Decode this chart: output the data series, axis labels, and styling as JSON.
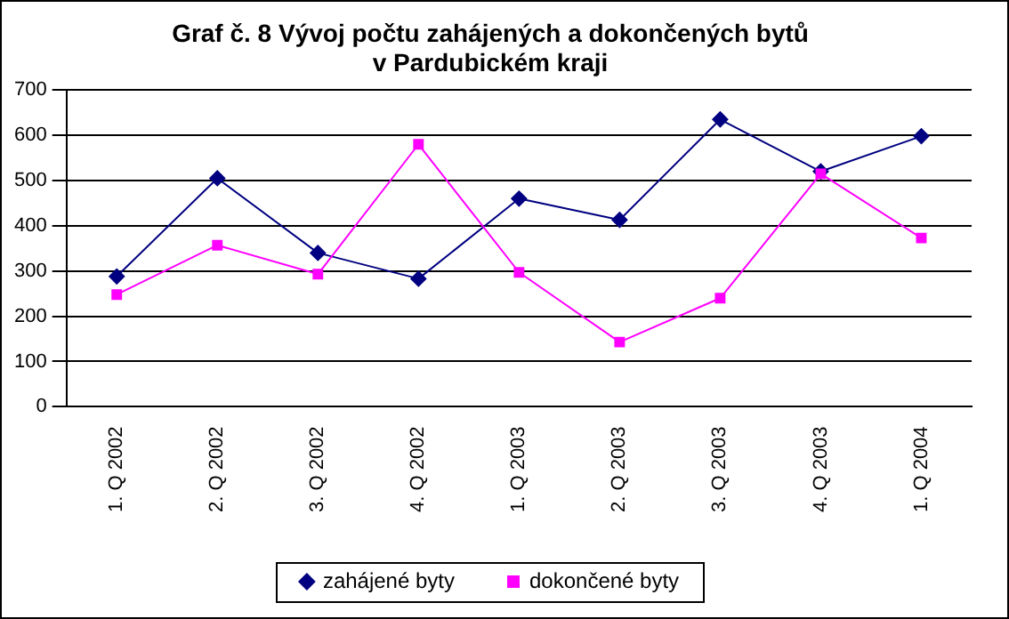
{
  "chart_data": {
    "type": "line",
    "title": "Graf č. 8 Vývoj počtu zahájených a dokončených bytů\nv Pardubickém kraji",
    "categories": [
      "1. Q 2002",
      "2. Q 2002",
      "3. Q 2002",
      "4. Q 2002",
      "1. Q 2003",
      "2. Q 2003",
      "3. Q 2003",
      "4. Q 2003",
      "1. Q 2004"
    ],
    "series": [
      {
        "name": "zahájené byty",
        "color": "#000080",
        "marker": "diamond",
        "values": [
          288,
          505,
          340,
          283,
          460,
          413,
          635,
          520,
          598
        ]
      },
      {
        "name": "dokončené byty",
        "color": "#ff00ff",
        "marker": "square",
        "values": [
          248,
          357,
          293,
          580,
          297,
          143,
          240,
          515,
          373
        ]
      }
    ],
    "ylim": [
      0,
      700
    ],
    "yticks": [
      0,
      100,
      200,
      300,
      400,
      500,
      600,
      700
    ],
    "grid": "y",
    "legend": "bottom",
    "line_style": "solid"
  }
}
